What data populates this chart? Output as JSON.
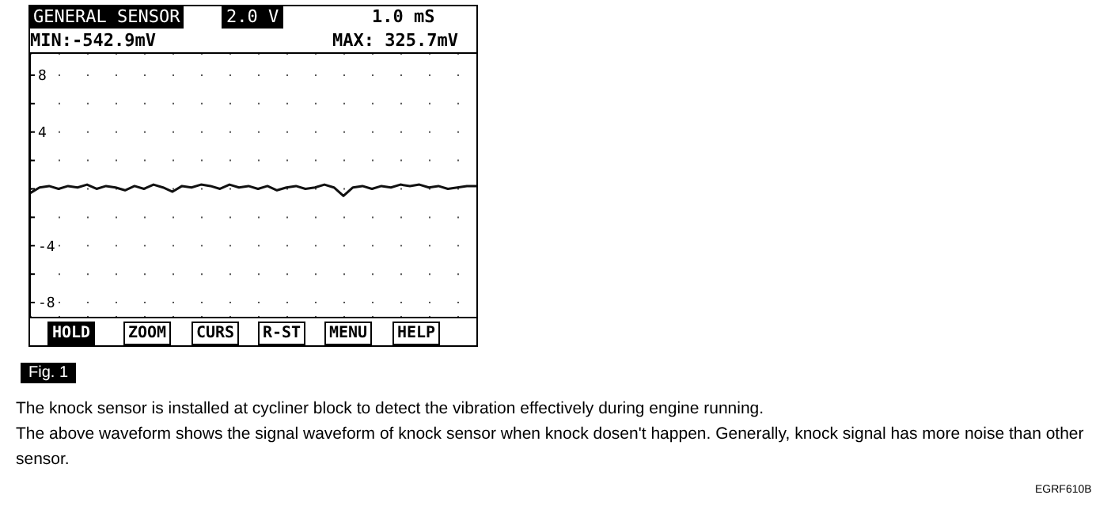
{
  "chart_data": {
    "type": "line",
    "title": "GENERAL SENSOR",
    "annotations": [
      "2.0 V",
      "1.0 mS",
      "MIN:-542.9mV",
      "MAX: 325.7mV",
      "HOLD",
      "ZOOM",
      "CURS",
      "R-ST",
      "MENU",
      "HELP",
      "Fig. 1",
      "The knock sensor is installed at cycliner block to detect the vibration effectively during engine running.",
      "The above waveform shows the signal waveform of knock sensor when knock dosen't happen. Generally, knock signal has more noise than other sensor.",
      "EGRF610B"
    ],
    "categories": [
      null,
      null,
      null,
      null,
      null,
      null,
      null,
      null,
      null,
      null,
      null,
      null,
      null,
      null,
      null,
      null,
      null,
      null,
      null,
      null,
      null,
      null,
      null,
      null,
      null,
      null,
      null,
      null,
      null,
      null,
      null,
      null,
      null,
      null,
      null,
      null,
      null,
      null,
      null,
      null,
      null,
      null,
      null,
      null,
      null,
      null,
      null,
      null
    ],
    "series": [
      {
        "color": "#111111",
        "values": [
          -0.3,
          0.1,
          0.2,
          0,
          0.2,
          0.1,
          0.3,
          0,
          0.2,
          0.1,
          -0.1,
          0.2,
          0,
          0.3,
          0.1,
          -0.2,
          0.2,
          0.1,
          0.3,
          0.2,
          0,
          0.3,
          0.1,
          0.2,
          0,
          0.2,
          -0.1,
          0.1,
          0.2,
          0,
          0.1,
          0.3,
          0.1,
          -0.5,
          0.1,
          0.2,
          0,
          0.2,
          0.1,
          0.3,
          0.2,
          0.3,
          0.1,
          0.2,
          0,
          0.1,
          0.2,
          0.2
        ]
      }
    ],
    "ylim": [
      -9,
      9.5
    ],
    "yticks": [
      8,
      {
        "value": 6,
        "label": null
      },
      4,
      {
        "value": 2,
        "label": null
      },
      {
        "value": 0,
        "label": null
      },
      {
        "value": -2,
        "label": null
      },
      -4,
      {
        "value": -6,
        "label": null
      },
      -8
    ],
    "grid": "y",
    "marker": "none",
    "line_style": "solid"
  }
}
